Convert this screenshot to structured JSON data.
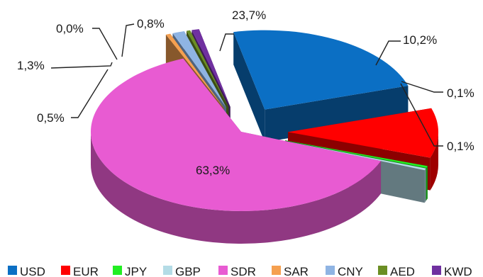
{
  "chart_data": {
    "type": "pie",
    "title": "",
    "style": "3d-exploded",
    "legend_position": "bottom",
    "slices": [
      {
        "name": "USD",
        "label": "23,7%",
        "value": 23.7,
        "color": "#0b6fc4",
        "exploded": true
      },
      {
        "name": "EUR",
        "label": "10,2%",
        "value": 10.2,
        "color": "#ff0000",
        "exploded": true
      },
      {
        "name": "JPY",
        "label": "0,1%",
        "value": 0.1,
        "color": "#22ee22",
        "exploded": true
      },
      {
        "name": "GBP",
        "label": "0,1%",
        "value": 0.1,
        "color": "#b4dce6",
        "exploded": true
      },
      {
        "name": "SDR",
        "label": "63,3%",
        "value": 63.3,
        "color": "#e85bd2",
        "exploded": false
      },
      {
        "name": "SAR",
        "label": "0,5%",
        "value": 0.5,
        "color": "#f5a050",
        "exploded": true
      },
      {
        "name": "CNY",
        "label": "1,3%",
        "value": 1.3,
        "color": "#8fb4e3",
        "exploded": true
      },
      {
        "name": "AED",
        "label": "0,0%",
        "value": 0.0,
        "color": "#6b8e23",
        "exploded": true
      },
      {
        "name": "KWD",
        "label": "0,8%",
        "value": 0.8,
        "color": "#7030a0",
        "exploded": true
      }
    ]
  }
}
